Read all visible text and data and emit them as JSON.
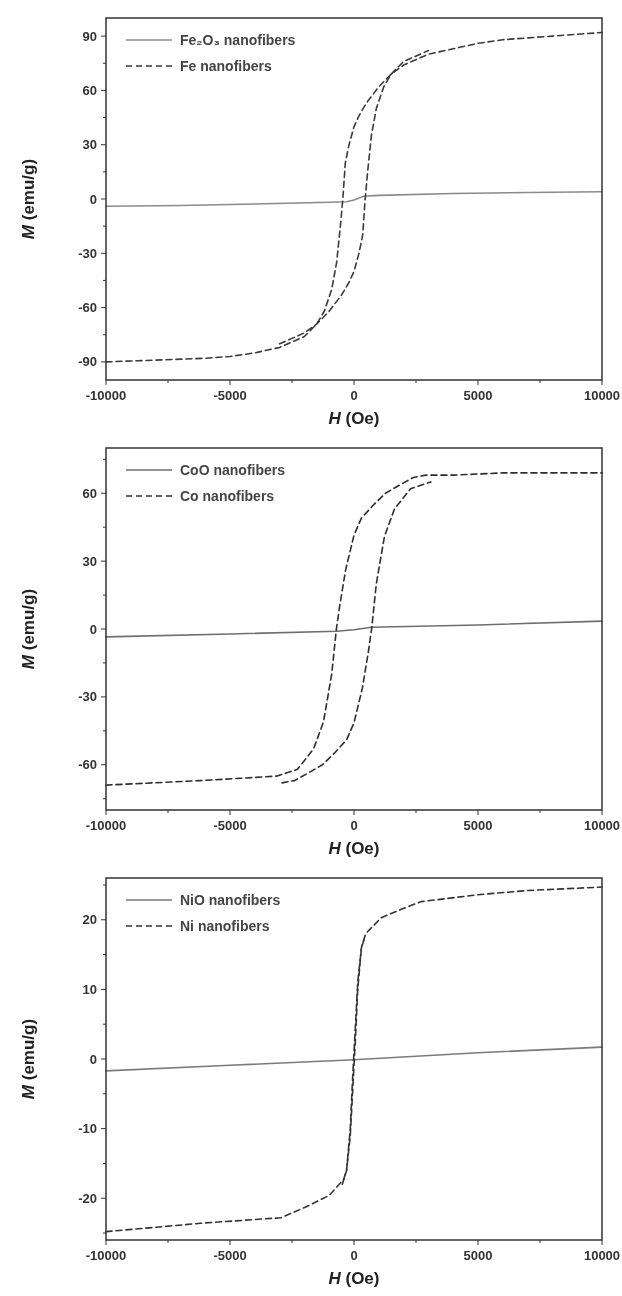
{
  "chart_data": [
    {
      "type": "line",
      "xlabel": "H (Oe)",
      "ylabel": "M (emu/g)",
      "xlim": [
        -10000,
        10000
      ],
      "xticks": [
        -10000,
        {
          "value": -7500,
          "label": null
        },
        -5000,
        {
          "value": -2500,
          "label": null
        },
        0,
        {
          "value": 2500,
          "label": null
        },
        5000,
        {
          "value": 7500,
          "label": null
        },
        10000
      ],
      "ylim": [
        -100,
        100
      ],
      "yticks": [
        -90,
        {
          "value": -75,
          "label": null
        },
        -60,
        {
          "value": -45,
          "label": null
        },
        -30,
        {
          "value": -15,
          "label": null
        },
        0,
        {
          "value": 15,
          "label": null
        },
        30,
        {
          "value": 45,
          "label": null
        },
        60,
        {
          "value": 75,
          "label": null
        },
        90
      ],
      "legend": "top left",
      "grid": false,
      "marker": "none",
      "series": [
        {
          "name": "Fe₂O₃ nanofibers",
          "color": "#8a8a8a",
          "line_style": "solid",
          "x": [
            -10000,
            -7000,
            -4000,
            -1000,
            -300,
            0,
            400,
            1000,
            4000,
            7000,
            10000
          ],
          "values": [
            -4,
            -3.6,
            -2.8,
            -1.8,
            -1.5,
            -0.5,
            1.5,
            2,
            3,
            3.6,
            4
          ]
        },
        {
          "name": "Fe nanofibers",
          "color": "#3a3a3a",
          "line_style": "dashed",
          "x": [
            -10000,
            -8000,
            -6000,
            -5000,
            -4000,
            -3000,
            -2000,
            -1500,
            -1200,
            -900,
            -700,
            -550,
            -450,
            -350,
            -200,
            0,
            200,
            500,
            1000,
            1500,
            2000,
            3000,
            4000,
            5000,
            6000,
            8000,
            10000
          ],
          "values": [
            -90,
            -89,
            -88,
            -87,
            -85,
            -82,
            -76,
            -69,
            -62,
            -50,
            -35,
            -15,
            0,
            20,
            30,
            40,
            46,
            53,
            62,
            69,
            74,
            80,
            83,
            86,
            88,
            90,
            92
          ]
        },
        {
          "color": "#3a3a3a",
          "line_style": "dashed",
          "x": [
            -3000,
            -2000,
            -1500,
            -1000,
            -500,
            -200,
            0,
            200,
            350,
            450,
            550,
            700,
            900,
            1200,
            1500,
            2000,
            3000
          ],
          "values": [
            -80,
            -74,
            -69,
            -62,
            -53,
            -46,
            -40,
            -30,
            -20,
            0,
            15,
            35,
            50,
            62,
            69,
            76,
            82
          ]
        }
      ]
    },
    {
      "type": "line",
      "xlabel": "H (Oe)",
      "ylabel": "M (emu/g)",
      "xlim": [
        -10000,
        10000
      ],
      "xticks": [
        -10000,
        {
          "value": -7500,
          "label": null
        },
        -5000,
        {
          "value": -2500,
          "label": null
        },
        0,
        {
          "value": 2500,
          "label": null
        },
        5000,
        {
          "value": 7500,
          "label": null
        },
        10000
      ],
      "ylim": [
        -80,
        80
      ],
      "yticks": [
        {
          "value": -75,
          "label": null
        },
        -60,
        {
          "value": -45,
          "label": null
        },
        -30,
        {
          "value": -15,
          "label": null
        },
        0,
        {
          "value": 15,
          "label": null
        },
        30,
        {
          "value": 45,
          "label": null
        },
        60,
        {
          "value": 75,
          "label": null
        }
      ],
      "legend": "top left",
      "grid": false,
      "marker": "none",
      "series": [
        {
          "name": "CoO nanofibers",
          "color": "#6e6e6e",
          "line_style": "solid",
          "x": [
            -10000,
            -5000,
            -700,
            0,
            700,
            5000,
            10000
          ],
          "values": [
            -3.5,
            -2.2,
            -1,
            -0.3,
            0.8,
            1.8,
            3.5
          ]
        },
        {
          "name": "Co nanofibers",
          "color": "#2e2e2e",
          "line_style": "dashed",
          "x": [
            -10000,
            -6200,
            -4600,
            -3100,
            -2280,
            -1630,
            -1230,
            -900,
            -710,
            -580,
            -340,
            0,
            300,
            800,
            1270,
            1900,
            2400,
            2900,
            4000,
            6000,
            10000
          ],
          "values": [
            -69,
            -67,
            -66,
            -65,
            -62,
            -53,
            -41,
            -20,
            0,
            10,
            26,
            41.5,
            49,
            55,
            60,
            64,
            67,
            68,
            68,
            69,
            69
          ]
        },
        {
          "color": "#2e2e2e",
          "line_style": "dashed",
          "x": [
            -2900,
            -2400,
            -1900,
            -1270,
            -800,
            -300,
            0,
            340,
            580,
            710,
            900,
            1230,
            1630,
            2280,
            3100
          ],
          "values": [
            -68,
            -67,
            -64,
            -60,
            -55,
            -49,
            -41.5,
            -26,
            -10,
            0,
            20,
            41,
            53,
            62,
            65
          ]
        }
      ]
    },
    {
      "type": "line",
      "xlabel": "H (Oe)",
      "ylabel": "M (emu/g)",
      "xlim": [
        -10000,
        10000
      ],
      "xticks": [
        -10000,
        {
          "value": -7500,
          "label": null
        },
        -5000,
        {
          "value": -2500,
          "label": null
        },
        0,
        {
          "value": 2500,
          "label": null
        },
        5000,
        {
          "value": 7500,
          "label": null
        },
        10000
      ],
      "ylim": [
        -26,
        26
      ],
      "yticks": [
        {
          "value": -25,
          "label": null
        },
        -20,
        {
          "value": -15,
          "label": null
        },
        -10,
        {
          "value": -5,
          "label": null
        },
        0,
        {
          "value": 5,
          "label": null
        },
        10,
        {
          "value": 15,
          "label": null
        },
        20,
        {
          "value": 25,
          "label": null
        }
      ],
      "legend": "top left",
      "grid": false,
      "marker": "none",
      "series": [
        {
          "name": "NiO nanofibers",
          "color": "#7a7a7a",
          "line_style": "solid",
          "x": [
            -10000,
            -5000,
            0,
            5000,
            10000
          ],
          "values": [
            -1.7,
            -0.9,
            -0.1,
            0.9,
            1.7
          ]
        },
        {
          "name": "Ni nanofibers",
          "color": "#333333",
          "line_style": "dashed",
          "x": [
            -10000,
            -6200,
            -2940,
            -1970,
            -1000,
            -420,
            -300,
            -150,
            -60,
            0,
            60,
            150,
            300,
            470,
            1100,
            1900,
            2700,
            5000,
            7000,
            10000
          ],
          "values": [
            -24.8,
            -23.6,
            -22.8,
            -21.3,
            -19.6,
            -17.3,
            -16,
            -10,
            -3,
            1,
            5,
            11,
            16,
            18,
            20.3,
            21.5,
            22.6,
            23.6,
            24.2,
            24.7
          ]
        },
        {
          "color": "#333333",
          "line_style": "dashed",
          "x": [
            -470,
            -300,
            -150,
            -60,
            0,
            60,
            150,
            300,
            420
          ],
          "values": [
            -18,
            -16,
            -11,
            -5,
            -1,
            3,
            10,
            16,
            17.3
          ]
        }
      ]
    }
  ]
}
